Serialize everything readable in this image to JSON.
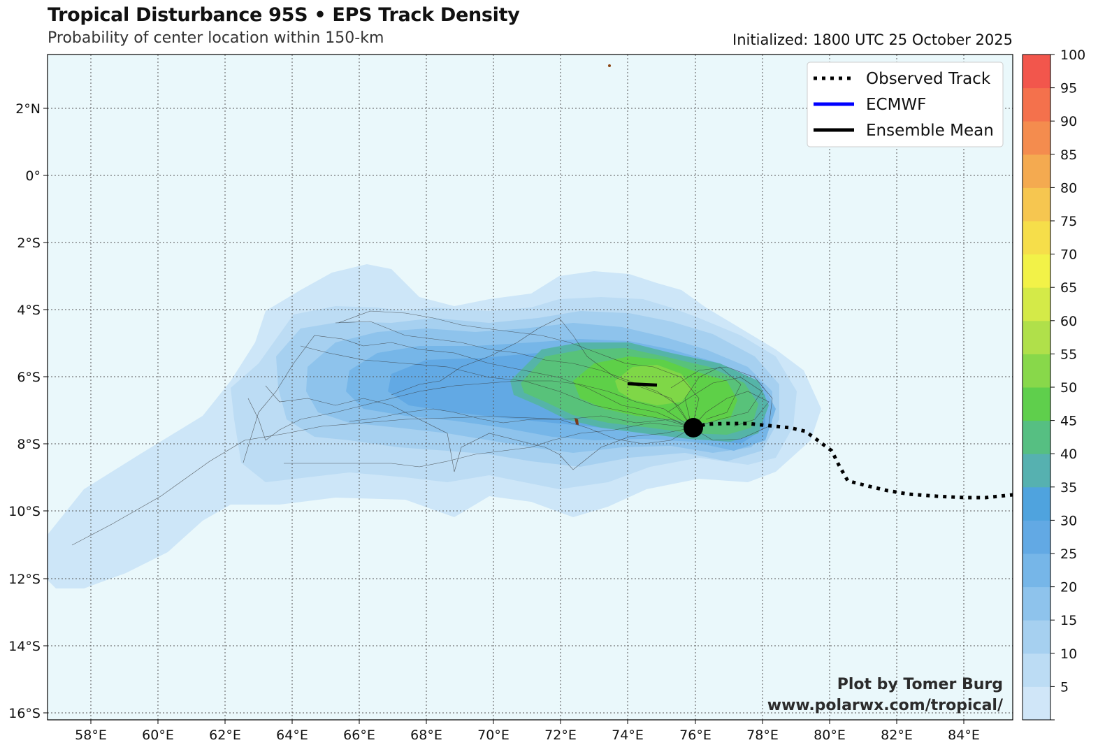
{
  "header": {
    "title": "Tropical Disturbance 95S • EPS Track Density",
    "subtitle": "Probability of center location within 150-km",
    "initialized": "Initialized: 1800 UTC 25 October 2025"
  },
  "map": {
    "lon_ticks": [
      "58°E",
      "60°E",
      "62°E",
      "64°E",
      "66°E",
      "68°E",
      "70°E",
      "72°E",
      "74°E",
      "76°E",
      "78°E",
      "80°E",
      "82°E",
      "84°E"
    ],
    "lat_ticks": [
      "2°N",
      "0°",
      "2°S",
      "4°S",
      "6°S",
      "8°S",
      "10°S",
      "12°S",
      "14°S",
      "16°S"
    ],
    "ocean_color": "#eaf8fb"
  },
  "legend": {
    "items": [
      {
        "label": "Observed Track",
        "color": "#000000",
        "style": "dotted"
      },
      {
        "label": "ECMWF",
        "color": "#0000ff",
        "style": "solid"
      },
      {
        "label": "Ensemble Mean",
        "color": "#000000",
        "style": "solid"
      }
    ]
  },
  "colorbar": {
    "labels": [
      "5",
      "10",
      "15",
      "20",
      "25",
      "30",
      "35",
      "40",
      "45",
      "50",
      "55",
      "60",
      "65",
      "70",
      "75",
      "80",
      "85",
      "90",
      "95",
      "100"
    ],
    "colors": [
      "#d0e6f8",
      "#bcdcf4",
      "#a6d0f0",
      "#8ec3ec",
      "#76b6e8",
      "#62a9e4",
      "#4fa3de",
      "#56b1b0",
      "#56bf82",
      "#5fcf4c",
      "#88d84a",
      "#b0e04a",
      "#d4ea48",
      "#f2f248",
      "#f6de4a",
      "#f6c650",
      "#f4aa50",
      "#f48c4e",
      "#f4714c",
      "#f2564c"
    ]
  },
  "credit": {
    "line1": "Plot by Tomer Burg",
    "line2": "www.polarwx.com/tropical/"
  }
}
